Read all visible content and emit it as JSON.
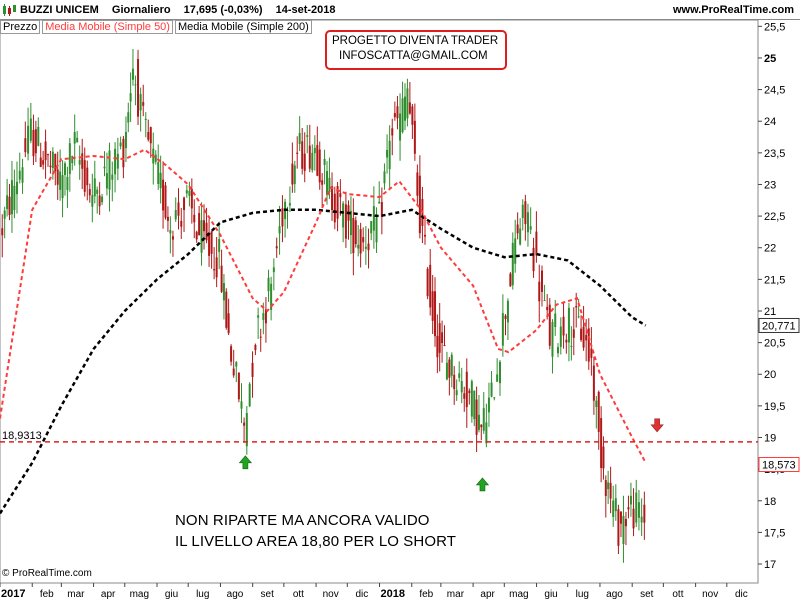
{
  "header": {
    "ticker": "BUZZI UNICEM",
    "period": "Giornaliero",
    "last": "17,695 (-0,03%)",
    "date": "14-set-2018",
    "site": "www.ProRealTime.com"
  },
  "legend": {
    "price": "Prezzo",
    "ma50": "Media Mobile (Simple 50)",
    "ma200": "Media Mobile (Simple 200)"
  },
  "promo": {
    "line1": "PROGETTO DIVENTA TRADER",
    "line2": "INFOSCATTA@GMAIL.COM"
  },
  "note": {
    "line1": "NON RIPARTE MA ANCORA VALIDO",
    "line2": "IL LIVELLO AREA 18,80 PER LO SHORT"
  },
  "copyright": "© ProRealTime.com",
  "colors": {
    "up": "#2f8f2f",
    "down": "#b01818",
    "ma50": "#ff3b3b",
    "ma200": "#000000",
    "level": "#e01e1e",
    "arrow_up": "#22a322",
    "arrow_down": "#e03030"
  },
  "icons": [
    "candles-logo-icon",
    "up-arrow-icon",
    "down-arrow-icon"
  ],
  "chart_data": {
    "type": "candlestick",
    "y_axis": {
      "min": 16.7,
      "max": 25.6,
      "ticks": [
        17,
        17.5,
        18,
        18.5,
        19,
        19.5,
        20,
        20.5,
        21,
        21.5,
        22,
        22.5,
        23,
        23.5,
        24,
        24.5,
        25,
        25.5
      ],
      "tick_labels": [
        "17",
        "17,5",
        "18",
        "18,5",
        "19",
        "19,5",
        "20",
        "20,5",
        "21",
        "21,5",
        "22",
        "22,5",
        "23",
        "23,5",
        "24",
        "24,5",
        "25",
        "25,5"
      ]
    },
    "x_axis": {
      "labels": [
        "2017",
        "feb",
        "mar",
        "apr",
        "mag",
        "giu",
        "lug",
        "ago",
        "set",
        "ott",
        "nov",
        "dic",
        "2018",
        "feb",
        "mar",
        "apr",
        "mag",
        "giu",
        "lug",
        "ago",
        "set",
        "ott",
        "nov",
        "dic"
      ],
      "year_labels": [
        "2017",
        "2018"
      ],
      "range": [
        "2017-01",
        "2018-12"
      ]
    },
    "price_series": {
      "name": "Prezzo",
      "points": [
        [
          "2017-01-02",
          22.2
        ],
        [
          "2017-01-16",
          23.0
        ],
        [
          "2017-02-01",
          23.8
        ],
        [
          "2017-02-15",
          23.4
        ],
        [
          "2017-03-01",
          23.0
        ],
        [
          "2017-03-15",
          23.6
        ],
        [
          "2017-04-01",
          22.8
        ],
        [
          "2017-04-15",
          23.2
        ],
        [
          "2017-05-01",
          23.6
        ],
        [
          "2017-05-10",
          24.9
        ],
        [
          "2017-05-20",
          23.9
        ],
        [
          "2017-06-01",
          23.2
        ],
        [
          "2017-06-15",
          22.4
        ],
        [
          "2017-07-01",
          22.7
        ],
        [
          "2017-07-15",
          22.1
        ],
        [
          "2017-08-01",
          21.8
        ],
        [
          "2017-08-10",
          20.6
        ],
        [
          "2017-08-25",
          19.2
        ],
        [
          "2017-09-05",
          20.6
        ],
        [
          "2017-09-20",
          21.4
        ],
        [
          "2017-10-01",
          22.6
        ],
        [
          "2017-10-15",
          23.5
        ],
        [
          "2017-11-01",
          23.6
        ],
        [
          "2017-11-15",
          22.9
        ],
        [
          "2017-12-01",
          22.4
        ],
        [
          "2017-12-15",
          22.1
        ],
        [
          "2018-01-02",
          22.4
        ],
        [
          "2018-01-12",
          23.8
        ],
        [
          "2018-01-22",
          24.0
        ],
        [
          "2018-01-29",
          24.5
        ],
        [
          "2018-02-10",
          22.5
        ],
        [
          "2018-02-20",
          21.2
        ],
        [
          "2018-03-01",
          20.4
        ],
        [
          "2018-03-15",
          20.0
        ],
        [
          "2018-04-01",
          19.6
        ],
        [
          "2018-04-10",
          19.1
        ],
        [
          "2018-04-20",
          19.6
        ],
        [
          "2018-05-01",
          20.8
        ],
        [
          "2018-05-15",
          22.3
        ],
        [
          "2018-05-25",
          22.5
        ],
        [
          "2018-06-05",
          21.4
        ],
        [
          "2018-06-15",
          20.6
        ],
        [
          "2018-07-01",
          20.8
        ],
        [
          "2018-07-15",
          20.7
        ],
        [
          "2018-07-25",
          20.2
        ],
        [
          "2018-08-01",
          19.0
        ],
        [
          "2018-08-10",
          18.2
        ],
        [
          "2018-08-20",
          17.6
        ],
        [
          "2018-09-01",
          17.9
        ],
        [
          "2018-09-14",
          17.695
        ]
      ]
    },
    "ma50": {
      "name": "Media Mobile (Simple 50)",
      "points": [
        [
          "2017-01-01",
          19.3
        ],
        [
          "2017-02-01",
          22.6
        ],
        [
          "2017-03-01",
          23.4
        ],
        [
          "2017-04-01",
          23.45
        ],
        [
          "2017-05-01",
          23.4
        ],
        [
          "2017-05-20",
          23.55
        ],
        [
          "2017-06-10",
          23.3
        ],
        [
          "2017-07-01",
          23.0
        ],
        [
          "2017-08-01",
          22.2
        ],
        [
          "2017-09-01",
          21.2
        ],
        [
          "2017-09-15",
          21.0
        ],
        [
          "2017-10-01",
          21.3
        ],
        [
          "2017-11-01",
          22.4
        ],
        [
          "2017-11-15",
          22.95
        ],
        [
          "2017-12-01",
          22.85
        ],
        [
          "2018-01-01",
          22.8
        ],
        [
          "2018-01-20",
          23.05
        ],
        [
          "2018-02-10",
          22.6
        ],
        [
          "2018-03-01",
          22.0
        ],
        [
          "2018-04-01",
          21.4
        ],
        [
          "2018-04-25",
          20.4
        ],
        [
          "2018-05-05",
          20.35
        ],
        [
          "2018-06-01",
          20.7
        ],
        [
          "2018-06-20",
          21.1
        ],
        [
          "2018-07-10",
          21.2
        ],
        [
          "2018-08-01",
          20.0
        ],
        [
          "2018-09-01",
          19.0
        ],
        [
          "2018-09-14",
          18.6
        ]
      ]
    },
    "ma200": {
      "name": "Media Mobile (Simple 200)",
      "points": [
        [
          "2017-01-01",
          17.8
        ],
        [
          "2017-02-01",
          18.6
        ],
        [
          "2017-03-01",
          19.5
        ],
        [
          "2017-04-01",
          20.4
        ],
        [
          "2017-05-01",
          21.0
        ],
        [
          "2017-06-01",
          21.5
        ],
        [
          "2017-07-01",
          21.9
        ],
        [
          "2017-08-01",
          22.4
        ],
        [
          "2017-09-01",
          22.55
        ],
        [
          "2017-10-01",
          22.6
        ],
        [
          "2017-11-01",
          22.6
        ],
        [
          "2017-12-01",
          22.55
        ],
        [
          "2018-01-01",
          22.5
        ],
        [
          "2018-02-01",
          22.6
        ],
        [
          "2018-03-01",
          22.3
        ],
        [
          "2018-04-01",
          22.0
        ],
        [
          "2018-05-01",
          21.85
        ],
        [
          "2018-06-01",
          21.9
        ],
        [
          "2018-07-01",
          21.8
        ],
        [
          "2018-08-01",
          21.4
        ],
        [
          "2018-09-01",
          20.9
        ],
        [
          "2018-09-14",
          20.771
        ]
      ]
    },
    "level_line": {
      "value": 18.9313,
      "label": "18,9313"
    },
    "last_value_labels": [
      {
        "series": "ma200",
        "value": 20.771,
        "label": "20,771"
      },
      {
        "series": "ma50",
        "value": 18.573,
        "label": "18,573"
      }
    ],
    "markers": [
      {
        "type": "up",
        "date": "2017-08-25",
        "value": 18.6
      },
      {
        "type": "up",
        "date": "2018-04-10",
        "value": 18.25
      },
      {
        "type": "down",
        "date": "2018-09-25",
        "value": 19.2
      }
    ]
  }
}
